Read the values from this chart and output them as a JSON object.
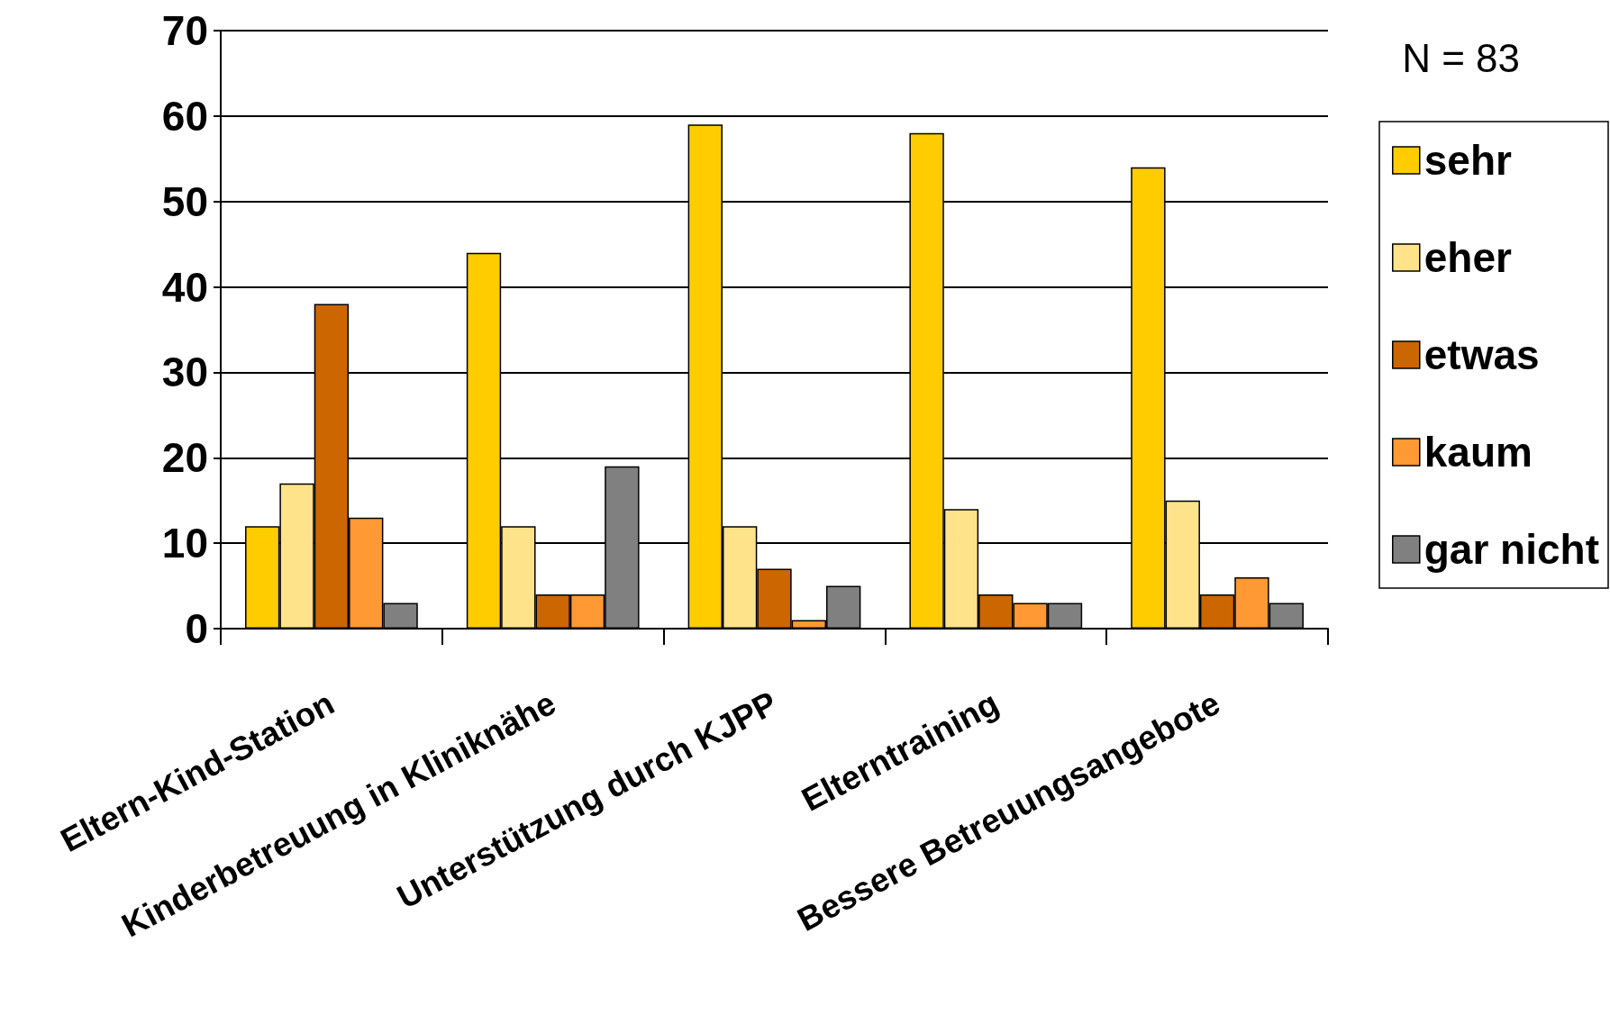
{
  "chart_data": {
    "type": "bar",
    "categories": [
      "Eltern-Kind-Station",
      "Kinderbetreuung in Kliniknähe",
      "Unterstützung durch KJPP",
      "Elterntraining",
      "Bessere Betreuungsangebote"
    ],
    "series": [
      {
        "name": "sehr",
        "color": "#ffcc00",
        "values": [
          12,
          44,
          59,
          58,
          54
        ]
      },
      {
        "name": "eher",
        "color": "#ffe38a",
        "values": [
          17,
          12,
          12,
          14,
          15
        ]
      },
      {
        "name": "etwas",
        "color": "#cc6600",
        "values": [
          38,
          4,
          7,
          4,
          4
        ]
      },
      {
        "name": "kaum",
        "color": "#ff9933",
        "values": [
          13,
          4,
          1,
          3,
          6
        ]
      },
      {
        "name": "gar nicht",
        "color": "#808080",
        "values": [
          3,
          19,
          5,
          3,
          3
        ]
      }
    ],
    "ylim": [
      0,
      70
    ],
    "yticks": [
      0,
      10,
      20,
      30,
      40,
      50,
      60,
      70
    ],
    "grid": "y",
    "legend": "right",
    "annotations": [
      "N = 83"
    ]
  }
}
